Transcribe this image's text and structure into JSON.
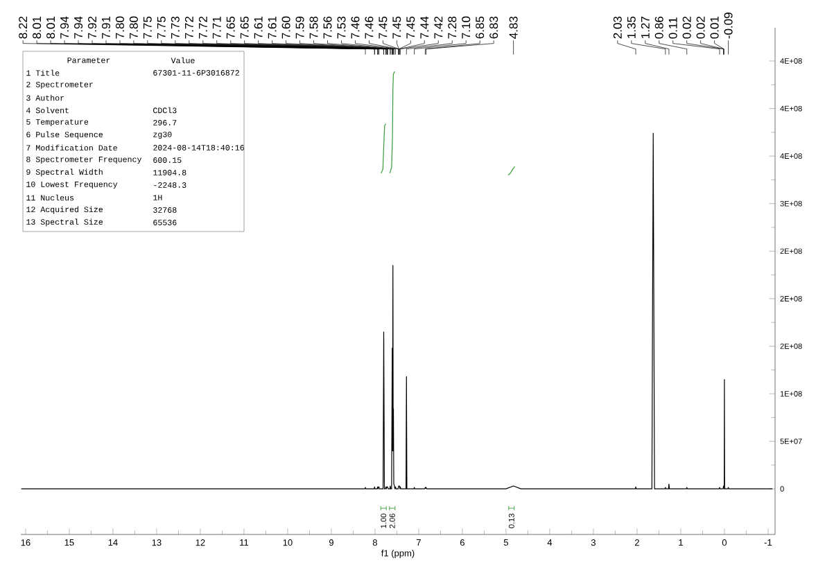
{
  "chart_data": [
    {
      "type": "line",
      "xlabel": "f1 (ppm)",
      "xlim": [
        16.11,
        -1.16
      ],
      "ylim": [
        -48000000,
        485000000
      ],
      "xticks": [
        16,
        15,
        14,
        13,
        12,
        11,
        10,
        9,
        8,
        7,
        6,
        5,
        4,
        3,
        2,
        1,
        0,
        -1
      ],
      "yticks": [
        0,
        {
          "value": 50000000,
          "label": "5E+07"
        },
        {
          "value": 100000000,
          "label": "1E+08"
        },
        {
          "value": 150000000,
          "label": "2E+08"
        },
        {
          "value": 200000000,
          "label": "2E+08"
        },
        {
          "value": 250000000,
          "label": "2E+08"
        },
        {
          "value": 300000000,
          "label": "3E+08"
        },
        {
          "value": 350000000,
          "label": "4E+08"
        },
        {
          "value": 400000000,
          "label": "4E+08"
        },
        {
          "value": 450000000,
          "label": "4E+08"
        }
      ],
      "series": [
        {
          "color": "#000000",
          "x": [
            16.1,
            8.23,
            8.22,
            8.21,
            8.02,
            8.01,
            8.0,
            7.95,
            7.94,
            7.93,
            7.92,
            7.91,
            7.9,
            7.815,
            7.8,
            7.785,
            7.76,
            7.75,
            7.74,
            7.73,
            7.72,
            7.71,
            7.7,
            7.66,
            7.65,
            7.64,
            7.62,
            7.605,
            7.597,
            7.59,
            7.583,
            7.578,
            7.57,
            7.56,
            7.545,
            7.53,
            7.52,
            7.47,
            7.46,
            7.45,
            7.44,
            7.43,
            7.42,
            7.41,
            7.29,
            7.28,
            7.27,
            7.11,
            7.1,
            7.09,
            6.86,
            6.85,
            6.84,
            6.83,
            6.82,
            5.0,
            4.83,
            4.66,
            2.04,
            2.03,
            2.02,
            1.66,
            1.63,
            1.6,
            1.36,
            1.35,
            1.34,
            1.28,
            1.27,
            1.26,
            0.87,
            0.86,
            0.85,
            0.12,
            0.11,
            0.1,
            0.03,
            0.02,
            0.01,
            0.005,
            0.0,
            -0.005,
            -0.08,
            -0.09,
            -0.1,
            -1.1
          ],
          "values": [
            0,
            0,
            1500000,
            0,
            0,
            2000000,
            0,
            0,
            2000000,
            0,
            2000000,
            2000000,
            0,
            0,
            165000000,
            0,
            0,
            2000000,
            0,
            2000000,
            2000000,
            2000000,
            0,
            0,
            3000000,
            0,
            0,
            148000000,
            40000000,
            235000000,
            40000000,
            84000000,
            5000000,
            4000000,
            0,
            2000000,
            0,
            0,
            3000000,
            3000000,
            3000000,
            0,
            2000000,
            0,
            0,
            118000000,
            0,
            0,
            1500000,
            0,
            0,
            1500000,
            500000,
            1500000,
            0,
            0,
            3000000,
            0,
            0,
            2000000,
            0,
            0,
            374000000,
            0,
            0,
            1500000,
            0,
            0,
            5000000,
            0,
            0,
            1500000,
            0,
            0,
            1500000,
            0,
            0,
            3000000,
            3000000,
            0,
            115000000,
            0,
            0,
            1500000,
            0,
            0
          ]
        },
        {
          "color": "#3a9a3a",
          "x": [
            7.86,
            7.82,
            7.8,
            7.78,
            7.75
          ],
          "values": [
            332000000,
            336000000,
            360000000,
            382000000,
            384000000
          ]
        },
        {
          "color": "#3a9a3a",
          "x": [
            7.66,
            7.62,
            7.6,
            7.59,
            7.58,
            7.55
          ],
          "values": [
            332000000,
            338000000,
            370000000,
            420000000,
            436000000,
            439000000
          ]
        },
        {
          "color": "#3a9a3a",
          "x": [
            4.95,
            4.9,
            4.85,
            4.8
          ],
          "values": [
            330000000,
            332000000,
            336000000,
            339000000
          ]
        }
      ],
      "annotations": [
        {
          "text": "8.22",
          "x": 8.22
        },
        {
          "text": "8.01",
          "x": 8.01
        },
        {
          "text": "8.01",
          "x": 8.01
        },
        {
          "text": "7.94",
          "x": 7.94
        },
        {
          "text": "7.94",
          "x": 7.94
        },
        {
          "text": "7.92",
          "x": 7.92
        },
        {
          "text": "7.91",
          "x": 7.91
        },
        {
          "text": "7.80",
          "x": 7.8
        },
        {
          "text": "7.80",
          "x": 7.8
        },
        {
          "text": "7.75",
          "x": 7.75
        },
        {
          "text": "7.75",
          "x": 7.75
        },
        {
          "text": "7.73",
          "x": 7.73
        },
        {
          "text": "7.72",
          "x": 7.72
        },
        {
          "text": "7.72",
          "x": 7.72
        },
        {
          "text": "7.71",
          "x": 7.71
        },
        {
          "text": "7.65",
          "x": 7.65
        },
        {
          "text": "7.65",
          "x": 7.65
        },
        {
          "text": "7.61",
          "x": 7.61
        },
        {
          "text": "7.61",
          "x": 7.61
        },
        {
          "text": "7.60",
          "x": 7.6
        },
        {
          "text": "7.59",
          "x": 7.59
        },
        {
          "text": "7.58",
          "x": 7.58
        },
        {
          "text": "7.56",
          "x": 7.56
        },
        {
          "text": "7.53",
          "x": 7.53
        },
        {
          "text": "7.46",
          "x": 7.46
        },
        {
          "text": "7.46",
          "x": 7.46
        },
        {
          "text": "7.45",
          "x": 7.45
        },
        {
          "text": "7.45",
          "x": 7.45
        },
        {
          "text": "7.45",
          "x": 7.45
        },
        {
          "text": "7.44",
          "x": 7.44
        },
        {
          "text": "7.42",
          "x": 7.42
        },
        {
          "text": "7.28",
          "x": 7.28
        },
        {
          "text": "7.10",
          "x": 7.1
        },
        {
          "text": "6.85",
          "x": 6.85
        },
        {
          "text": "6.83",
          "x": 6.83
        },
        {
          "text": "4.83",
          "x": 4.83
        },
        {
          "text": "2.03",
          "x": 2.03
        },
        {
          "text": "1.35",
          "x": 1.35
        },
        {
          "text": "1.27",
          "x": 1.27
        },
        {
          "text": "0.86",
          "x": 0.86
        },
        {
          "text": "0.11",
          "x": 0.11
        },
        {
          "text": "0.02",
          "x": 0.02
        },
        {
          "text": "0.02",
          "x": 0.02
        },
        {
          "text": "0.01",
          "x": 0.01
        },
        {
          "text": "-0.09",
          "x": -0.09
        },
        "1.00",
        "2.06",
        "0.13"
      ]
    },
    {
      "type": "other",
      "annotations": [
        "Parameter",
        "Value"
      ],
      "categories": [
        "1 Title",
        "2 Spectrometer",
        "3 Author",
        "4 Solvent",
        "5 Temperature",
        "6 Pulse Sequence",
        "7 Modification Date",
        "8 Spectrometer Frequency",
        "9 Spectral Width",
        "10 Lowest Frequency",
        "11 Nucleus",
        "12 Acquired Size",
        "13 Spectral Size"
      ],
      "value_labels": [
        "67301-11-6P3016872",
        null,
        null,
        "CDCl3",
        "296.7",
        "zg30",
        "2024-08-14T18:40:16",
        "600.15",
        "11904.8",
        "-2248.3",
        "1H",
        "32768",
        "65536"
      ]
    }
  ]
}
